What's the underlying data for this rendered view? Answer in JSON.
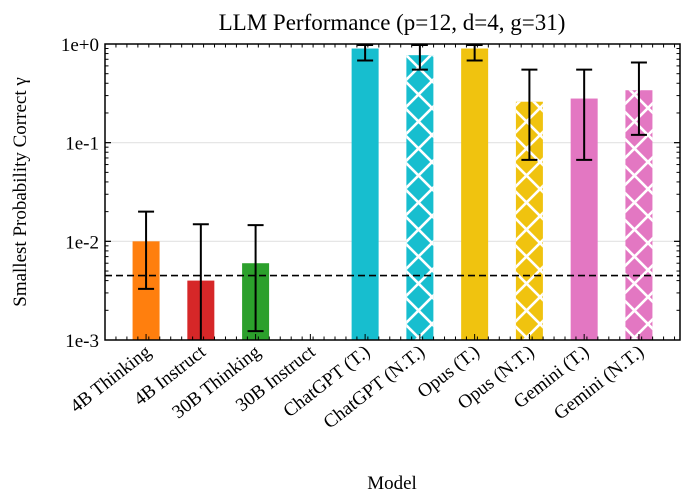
{
  "chart_data": {
    "type": "bar",
    "title": "LLM Performance (p=12, d=4, g=31)",
    "xlabel": "Model",
    "ylabel": "Smallest Probability Correct γ",
    "yscale": "log",
    "ylim": [
      0.001,
      1
    ],
    "yticks": [
      "1e-3",
      "1e-2",
      "1e-1",
      "1e+0"
    ],
    "ytick_values": [
      0.001,
      0.01,
      0.1,
      1
    ],
    "grid": "horizontal major gridlines",
    "reference_line": {
      "value": 0.0045,
      "style": "dashed",
      "color": "#000000"
    },
    "categories": [
      "4B Thinking",
      "4B Instruct",
      "30B Thinking",
      "30B Instruct",
      "ChatGPT (T.)",
      "ChatGPT (N.T.)",
      "Opus (T.)",
      "Opus (N.T.)",
      "Gemini (T.)",
      "Gemini (N.T.)"
    ],
    "values": [
      0.01,
      0.004,
      0.006,
      null,
      0.9,
      0.77,
      0.9,
      0.26,
      0.28,
      0.34
    ],
    "error_low": [
      0.0033,
      0.001,
      0.00123,
      null,
      0.68,
      0.55,
      0.68,
      0.067,
      0.067,
      0.12
    ],
    "error_high": [
      0.02,
      0.0149,
      0.0146,
      null,
      1.0,
      1.0,
      1.0,
      0.55,
      0.55,
      0.65
    ],
    "colors": [
      "#ff7f0e",
      "#d62728",
      "#2ca02c",
      "#7f7f7f",
      "#17becf",
      "#17becf",
      "#f0c30f",
      "#f0c30f",
      "#e377c2",
      "#e377c2"
    ],
    "hatched": [
      false,
      false,
      false,
      false,
      false,
      true,
      false,
      true,
      false,
      true
    ]
  }
}
